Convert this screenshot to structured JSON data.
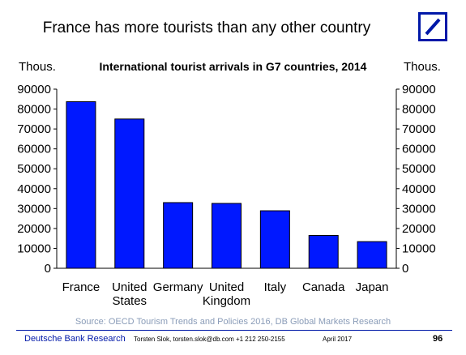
{
  "header": {
    "title": "France has more tourists than any other country",
    "logo_icon": "deutsche-bank-slash-logo",
    "brand_color": "#0018a8"
  },
  "chart_data": {
    "type": "bar",
    "title": "International tourist arrivals in G7 countries, 2014",
    "ylabel_left": "Thous.",
    "ylabel_right": "Thous.",
    "categories": [
      "France",
      "United States",
      "Germany",
      "United Kingdom",
      "Italy",
      "Canada",
      "Japan"
    ],
    "category_lines": [
      [
        "France"
      ],
      [
        "United",
        "States"
      ],
      [
        "Germany"
      ],
      [
        "United",
        "Kingdom"
      ],
      [
        "Italy"
      ],
      [
        "Canada"
      ],
      [
        "Japan"
      ]
    ],
    "values": [
      83700,
      75000,
      33000,
      32600,
      28900,
      16500,
      13400
    ],
    "ylim": [
      0,
      90000
    ],
    "yticks": [
      0,
      10000,
      20000,
      30000,
      40000,
      50000,
      60000,
      70000,
      80000,
      90000
    ],
    "bar_color": "#0018ff",
    "grid": false,
    "legend": "none"
  },
  "source": "Source: OECD Tourism Trends and Policies 2016, DB Global Markets Research",
  "footer": {
    "org": "Deutsche Bank Research",
    "author": "Torsten Slok, torsten.slok@db.com +1 212 250-2155",
    "date": "April 2017",
    "page": "96"
  }
}
